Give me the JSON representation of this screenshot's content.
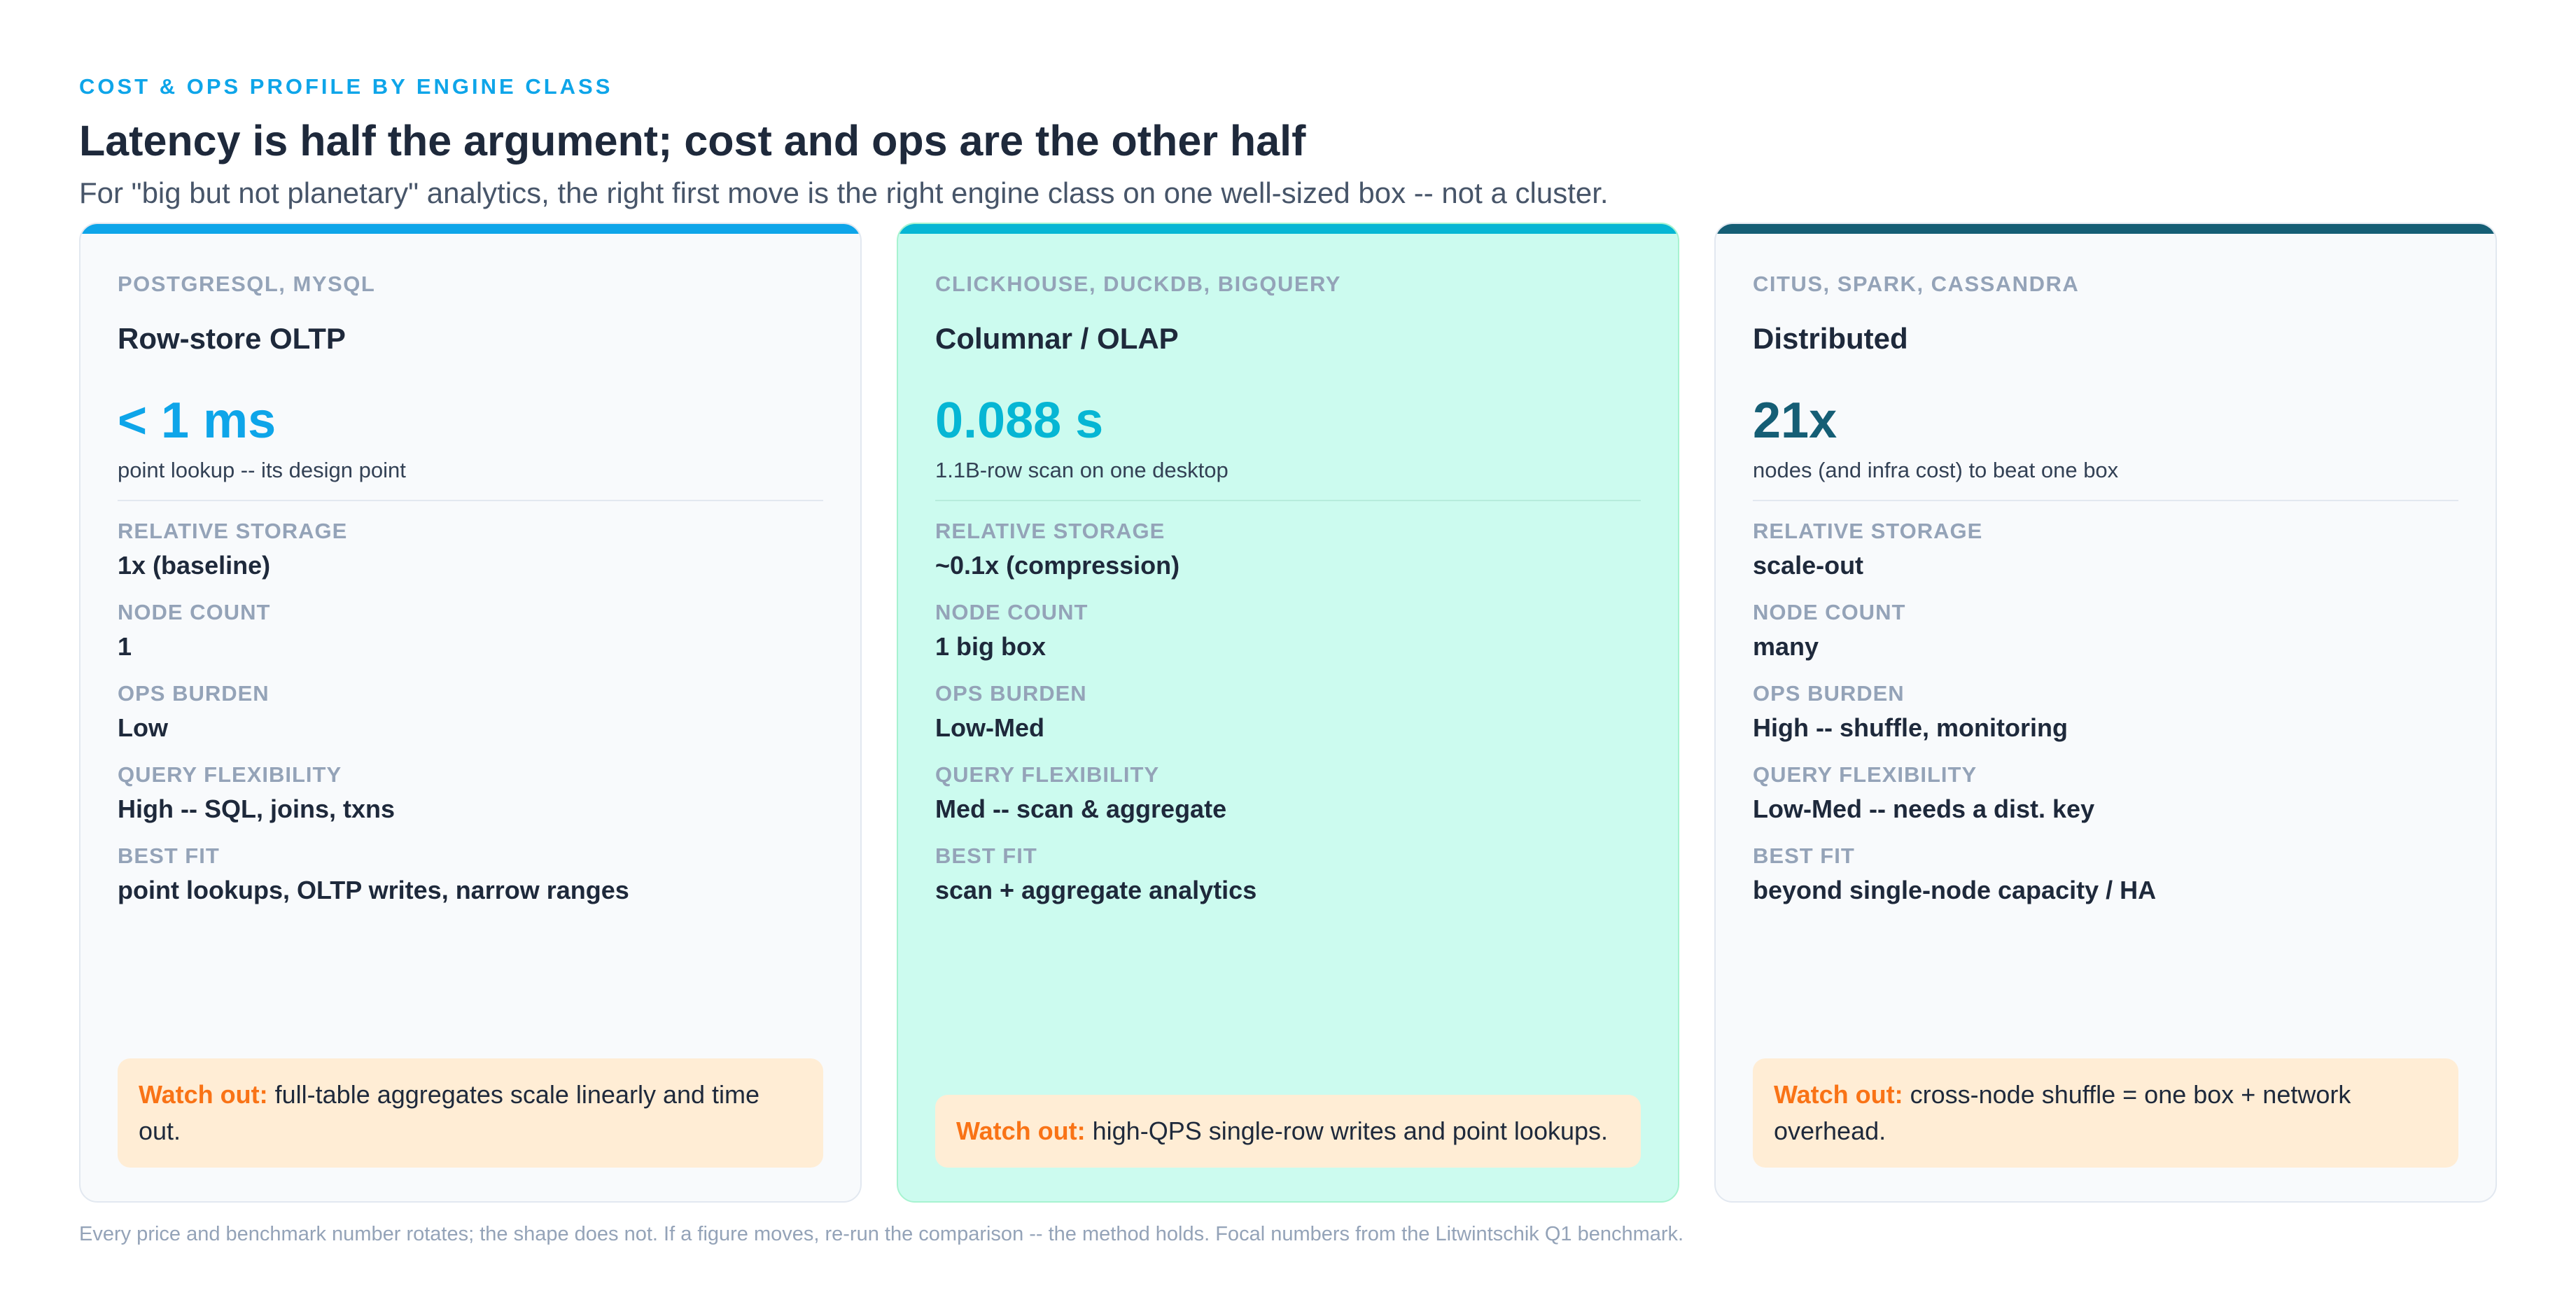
{
  "header": {
    "eyebrow": "COST & OPS PROFILE BY ENGINE CLASS",
    "title": "Latency is half the argument; cost and ops are the other half",
    "subtitle": "For \"big but not planetary\" analytics, the right first move is the right engine class on one well-sized box -- not a cluster."
  },
  "field_labels": {
    "storage": "RELATIVE STORAGE",
    "nodes": "NODE COUNT",
    "ops": "OPS BURDEN",
    "flex": "QUERY FLEXIBILITY",
    "fit": "BEST FIT"
  },
  "watch_label": "Watch out:",
  "cards": [
    {
      "engines": "POSTGRESQL, MYSQL",
      "name": "Row-store OLTP",
      "metric": "< 1 ms",
      "metric_caption": "point lookup -- its design point",
      "accent_color": "#0ea5e9",
      "storage": "1x (baseline)",
      "nodes": "1",
      "ops": "Low",
      "flex": "High -- SQL, joins, txns",
      "fit": "point lookups, OLTP writes, narrow ranges",
      "watch_text": "full-table aggregates scale linearly and time out."
    },
    {
      "engines": "CLICKHOUSE, DUCKDB, BIGQUERY",
      "name": "Columnar / OLAP",
      "metric": "0.088 s",
      "metric_caption": "1.1B-row scan on one desktop",
      "accent_color": "#06b6d4",
      "storage": "~0.1x (compression)",
      "nodes": "1 big box",
      "ops": "Low-Med",
      "flex": "Med -- scan & aggregate",
      "fit": "scan + aggregate analytics",
      "watch_text": "high-QPS single-row writes and point lookups."
    },
    {
      "engines": "CITUS, SPARK, CASSANDRA",
      "name": "Distributed",
      "metric": "21x",
      "metric_caption": "nodes (and infra cost) to beat one box",
      "accent_color": "#155e75",
      "storage": "scale-out",
      "nodes": "many",
      "ops": "High -- shuffle, monitoring",
      "flex": "Low-Med -- needs a dist. key",
      "fit": "beyond single-node capacity / HA",
      "watch_text": "cross-node shuffle = one box + network overhead."
    }
  ],
  "footer": "Every price and benchmark number rotates; the shape does not. If a figure moves, re-run the comparison -- the method holds. Focal numbers from the Litwintschik Q1 benchmark."
}
